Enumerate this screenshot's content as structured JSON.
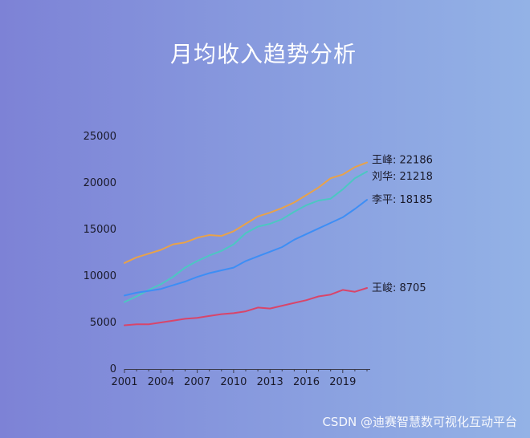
{
  "chart_data": {
    "type": "line",
    "title": "月均收入趋势分析",
    "xlabel": "",
    "ylabel": "",
    "ylim": [
      0,
      25000
    ],
    "xlim": [
      2001,
      2021
    ],
    "y_ticks": [
      "0",
      "5000",
      "10000",
      "15000",
      "20000",
      "25000"
    ],
    "x_ticks": [
      "2001",
      "2004",
      "2007",
      "2010",
      "2013",
      "2016",
      "2019"
    ],
    "x": [
      2001,
      2002,
      2003,
      2004,
      2005,
      2006,
      2007,
      2008,
      2009,
      2010,
      2011,
      2012,
      2013,
      2014,
      2015,
      2016,
      2017,
      2018,
      2019,
      2020,
      2021
    ],
    "grid": false,
    "series": [
      {
        "name": "王峰",
        "end_label": "王峰: 22186",
        "color": "#e8a24a",
        "values": [
          11400,
          12000,
          12400,
          12800,
          13400,
          13600,
          14100,
          14400,
          14300,
          14800,
          15600,
          16400,
          16800,
          17300,
          17900,
          18700,
          19500,
          20500,
          20900,
          21700,
          22186
        ]
      },
      {
        "name": "刘华",
        "end_label": "刘华: 21218",
        "color": "#4cc7c2",
        "values": [
          7200,
          7800,
          8500,
          9100,
          9900,
          10900,
          11600,
          12200,
          12700,
          13400,
          14600,
          15300,
          15600,
          16100,
          16900,
          17600,
          18100,
          18300,
          19300,
          20500,
          21218
        ]
      },
      {
        "name": "李平",
        "end_label": "李平: 18185",
        "color": "#3d8ef5",
        "values": [
          7900,
          8200,
          8400,
          8600,
          9000,
          9400,
          9900,
          10300,
          10600,
          10900,
          11600,
          12100,
          12600,
          13100,
          13900,
          14500,
          15100,
          15700,
          16300,
          17200,
          18185
        ]
      },
      {
        "name": "王峻",
        "end_label": "王峻: 8705",
        "color": "#d8456a",
        "values": [
          4700,
          4800,
          4800,
          5000,
          5200,
          5400,
          5500,
          5700,
          5900,
          6000,
          6200,
          6600,
          6500,
          6800,
          7100,
          7400,
          7800,
          8000,
          8500,
          8300,
          8705
        ]
      }
    ]
  },
  "watermark": "CSDN @迪赛智慧数可视化互动平台"
}
